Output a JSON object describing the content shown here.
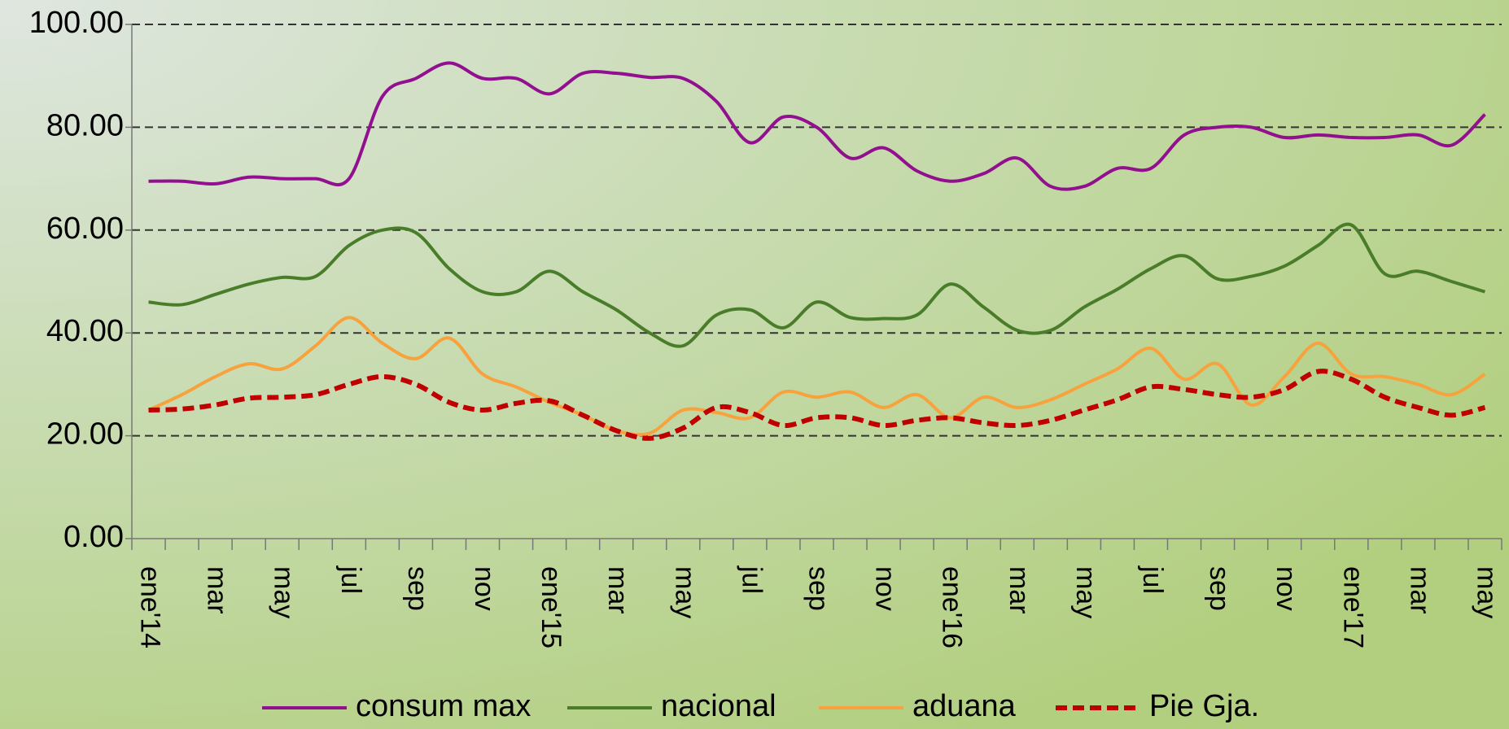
{
  "chart_data": {
    "type": "line",
    "categories": [
      "ene'14",
      null,
      "mar",
      null,
      "may",
      null,
      "jul",
      null,
      "sep",
      null,
      "nov",
      null,
      "ene'15",
      null,
      "mar",
      null,
      "may",
      null,
      "jul",
      null,
      "sep",
      null,
      "nov",
      null,
      "ene'16",
      null,
      "mar",
      null,
      "may",
      null,
      "jul",
      null,
      "sep",
      null,
      "nov",
      null,
      "ene'17",
      null,
      "mar",
      null,
      "may"
    ],
    "series": [
      {
        "name": "consum max",
        "color": "#92108f",
        "dash": false,
        "values": [
          69.5,
          69.5,
          69,
          70.3,
          70,
          70,
          70,
          86,
          89.5,
          92.5,
          89.5,
          89.5,
          86.5,
          90.5,
          90.5,
          89.7,
          89.5,
          85,
          77,
          82,
          80,
          74,
          76,
          71.5,
          69.5,
          71,
          74,
          68.5,
          68.5,
          72,
          72,
          78.5,
          80,
          80,
          78,
          78.5,
          78,
          78,
          78.5,
          76.5,
          82.5
        ]
      },
      {
        "name": "nacional",
        "color": "#4a7d2a",
        "dash": false,
        "values": [
          46,
          45.5,
          47.5,
          49.5,
          50.8,
          51,
          57,
          60,
          59.5,
          52.5,
          48,
          48,
          52,
          48,
          44.5,
          40,
          37.5,
          43.5,
          44.5,
          41,
          46,
          43,
          42.8,
          43.5,
          49.5,
          45,
          40.5,
          40.5,
          45,
          48.5,
          52.5,
          55,
          50.5,
          51,
          53,
          57,
          61,
          51.5,
          52,
          50,
          48
        ]
      },
      {
        "name": "aduana",
        "color": "#f7a23c",
        "dash": false,
        "values": [
          25,
          28,
          31.5,
          34,
          33,
          37.5,
          43,
          38,
          35,
          39,
          32,
          29.5,
          26.5,
          24,
          21,
          20.5,
          25,
          24.5,
          23.5,
          28.5,
          27.5,
          28.5,
          25.5,
          28,
          23.5,
          27.5,
          25.5,
          27,
          30,
          33,
          37,
          31,
          34,
          26,
          31.5,
          38,
          32,
          31.5,
          30,
          28,
          32
        ]
      },
      {
        "name": "Pie Gja.",
        "color": "#c00000",
        "dash": true,
        "values": [
          25,
          25.2,
          26,
          27.3,
          27.5,
          28,
          30,
          31.5,
          30,
          26.5,
          25,
          26.3,
          26.8,
          24,
          21,
          19.5,
          21.5,
          25.5,
          24.5,
          22,
          23.5,
          23.5,
          22,
          23,
          23.5,
          22.5,
          22,
          23,
          25,
          27,
          29.5,
          29,
          28,
          27.5,
          29,
          32.5,
          31,
          27.5,
          25.5,
          24,
          25.5
        ]
      }
    ],
    "ylim": [
      0,
      100
    ],
    "yticks": [
      {
        "value": 0,
        "label": "0.00"
      },
      {
        "value": 20,
        "label": "20.00"
      },
      {
        "value": 40,
        "label": "40.00"
      },
      {
        "value": 60,
        "label": "60.00"
      },
      {
        "value": 80,
        "label": "80.00"
      },
      {
        "value": 100,
        "label": "100.00"
      }
    ],
    "grid": true,
    "legend": "bottom"
  }
}
